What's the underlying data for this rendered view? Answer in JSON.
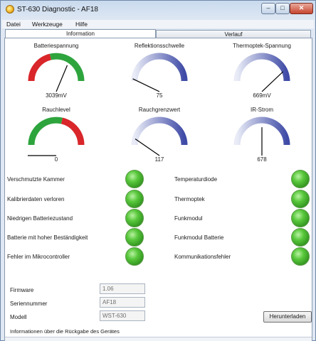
{
  "window": {
    "title": "ST-630 Diagnostic - AF18",
    "buttons": {
      "minimize": "–",
      "maximize": "□",
      "close": "✕"
    }
  },
  "menu": [
    "Datei",
    "Werkzeuge",
    "Hilfe"
  ],
  "tabs": [
    "Information",
    "Verlauf"
  ],
  "gauges": [
    {
      "label": "Batteriespannung",
      "value": "3039mV",
      "arc": "red-green",
      "needle_fraction": 0.62
    },
    {
      "label": "Reflektionsschwelle",
      "value": "75",
      "arc": "blue",
      "needle_fraction": 0.15
    },
    {
      "label": "Thermoptek-Spannung",
      "value": "669mV",
      "arc": "blue",
      "needle_fraction": 0.75
    },
    {
      "label": "Rauchlevel",
      "value": "0",
      "arc": "green-red",
      "needle_fraction": 0.0
    },
    {
      "label": "Rauchgrenzwert",
      "value": "117",
      "arc": "blue",
      "needle_fraction": 0.2
    },
    {
      "label": "IR-Strom",
      "value": "678",
      "arc": "blue",
      "needle_fraction": 0.5
    }
  ],
  "status_left": [
    "Verschmutzte Kammer",
    "Kalibrierdaten verloren",
    "Niedrigen Batteriezustand",
    "Batterie mit hoher Beständigkeit",
    "Fehler im Mikrocontroller"
  ],
  "status_right": [
    "Temperaturdiode",
    "Thermoptek",
    "Funkmodul",
    "Funkmodul Batterie",
    "Kommunikationsfehler"
  ],
  "led_color": "#3fb02a",
  "fields": [
    {
      "label": "Firmware",
      "value": "1.06"
    },
    {
      "label": "Seriennummer",
      "value": "AF18"
    },
    {
      "label": "Modell",
      "value": "WST-630"
    }
  ],
  "download_label": "Herunterladen",
  "info_text": "Informationen über die Rückgabe des Gerätes"
}
